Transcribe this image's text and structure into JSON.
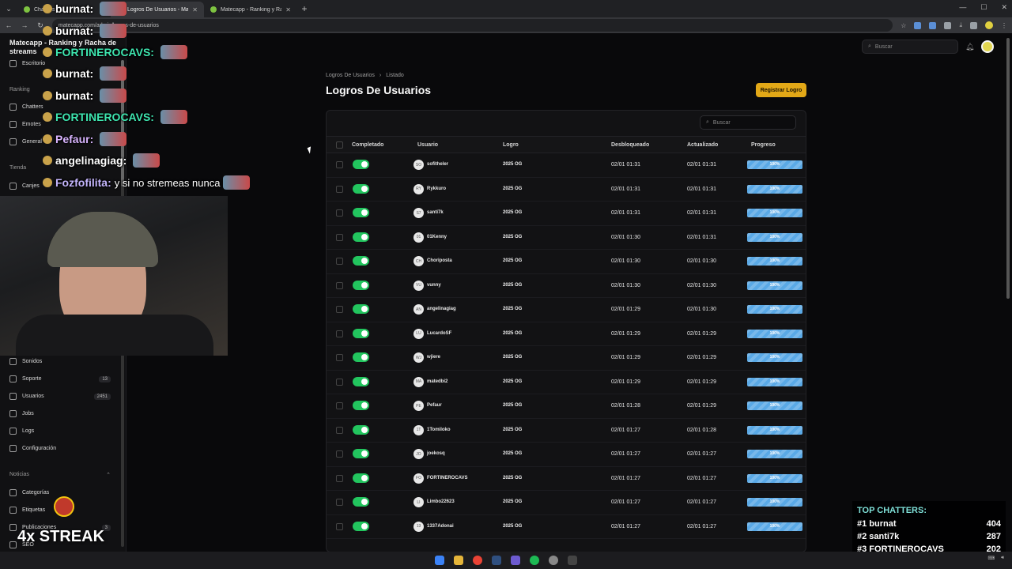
{
  "browser": {
    "tabs": [
      {
        "label": "Chatters",
        "active": false
      },
      {
        "label": "Logros De Usuarios - Matecapp",
        "active": true
      },
      {
        "label": "Matecapp - Ranking y Racha de",
        "active": false
      }
    ],
    "url": "matecapp.com/admin/logros-de-usuarios",
    "new_tab": "+"
  },
  "sidebar": {
    "brand": "Matecapp - Ranking y Racha de streams",
    "items_top": [
      {
        "label": "Escritorio"
      },
      {
        "label": "Chatters"
      },
      {
        "label": "Emotes"
      },
      {
        "label": "General"
      },
      {
        "label": "Canjes"
      }
    ],
    "groups": {
      "ranking": "Ranking",
      "tienda": "Tienda",
      "noticias": "Noticias"
    },
    "items_bottom": [
      {
        "label": "Sonidos",
        "count": ""
      },
      {
        "label": "Soporte",
        "count": "13"
      },
      {
        "label": "Usuarios",
        "count": "2451"
      },
      {
        "label": "Jobs",
        "count": ""
      },
      {
        "label": "Logs",
        "count": ""
      },
      {
        "label": "Configuración",
        "count": ""
      }
    ],
    "items_news": [
      {
        "label": "Categorías",
        "count": ""
      },
      {
        "label": "Etiquetas",
        "count": ""
      },
      {
        "label": "Publicaciones",
        "count": "3"
      },
      {
        "label": "SEO",
        "count": ""
      }
    ]
  },
  "header": {
    "search_placeholder": "Buscar"
  },
  "page": {
    "breadcrumb": [
      "Logros De Usuarios",
      "Listado"
    ],
    "breadcrumb_sep": "›",
    "title": "Logros De Usuarios",
    "primary_button": "Registrar Logro",
    "table_search_placeholder": "Buscar"
  },
  "table": {
    "columns": [
      "Completado",
      "Usuario",
      "Logro",
      "Desbloqueado",
      "Actualizado",
      "Progreso"
    ],
    "rows": [
      {
        "user": "sofitheler",
        "initials": "SO",
        "logro": "2025 OG",
        "unlocked": "02/01 01:31",
        "updated": "02/01 01:31",
        "progress": "100%"
      },
      {
        "user": "Rykkuro",
        "initials": "RY",
        "logro": "2025 OG",
        "unlocked": "02/01 01:31",
        "updated": "02/01 01:31",
        "progress": "100%"
      },
      {
        "user": "santi7k",
        "initials": "S7",
        "logro": "2025 OG",
        "unlocked": "02/01 01:31",
        "updated": "02/01 01:31",
        "progress": "100%"
      },
      {
        "user": "01Kenny",
        "initials": "01",
        "logro": "2025 OG",
        "unlocked": "02/01 01:30",
        "updated": "02/01 01:31",
        "progress": "100%"
      },
      {
        "user": "Choriposta",
        "initials": "CH",
        "logro": "2025 OG",
        "unlocked": "02/01 01:30",
        "updated": "02/01 01:30",
        "progress": "100%"
      },
      {
        "user": "vunny",
        "initials": "VU",
        "logro": "2025 OG",
        "unlocked": "02/01 01:30",
        "updated": "02/01 01:30",
        "progress": "100%"
      },
      {
        "user": "angelinagiag",
        "initials": "AN",
        "logro": "2025 OG",
        "unlocked": "02/01 01:29",
        "updated": "02/01 01:30",
        "progress": "100%"
      },
      {
        "user": "LucardoSF",
        "initials": "LU",
        "logro": "2025 OG",
        "unlocked": "02/01 01:29",
        "updated": "02/01 01:29",
        "progress": "100%"
      },
      {
        "user": "wjiere",
        "initials": "WJ",
        "logro": "2025 OG",
        "unlocked": "02/01 01:29",
        "updated": "02/01 01:29",
        "progress": "100%"
      },
      {
        "user": "matedbi2",
        "initials": "MA",
        "logro": "2025 OG",
        "unlocked": "02/01 01:29",
        "updated": "02/01 01:29",
        "progress": "100%"
      },
      {
        "user": "Pefaur",
        "initials": "PE",
        "logro": "2025 OG",
        "unlocked": "02/01 01:28",
        "updated": "02/01 01:29",
        "progress": "100%"
      },
      {
        "user": "1Tomiloko",
        "initials": "1T",
        "logro": "2025 OG",
        "unlocked": "02/01 01:27",
        "updated": "02/01 01:28",
        "progress": "100%"
      },
      {
        "user": "joekosq",
        "initials": "JO",
        "logro": "2025 OG",
        "unlocked": "02/01 01:27",
        "updated": "02/01 01:27",
        "progress": "100%"
      },
      {
        "user": "FORTINEROCAVS",
        "initials": "FO",
        "logro": "2025 OG",
        "unlocked": "02/01 01:27",
        "updated": "02/01 01:27",
        "progress": "100%"
      },
      {
        "user": "Limbo22623",
        "initials": "LI",
        "logro": "2025 OG",
        "unlocked": "02/01 01:27",
        "updated": "02/01 01:27",
        "progress": "100%"
      },
      {
        "user": "1337Adonai",
        "initials": "13",
        "logro": "2025 OG",
        "unlocked": "02/01 01:27",
        "updated": "02/01 01:27",
        "progress": "100%"
      }
    ]
  },
  "overlay": {
    "chat": [
      {
        "user": "burnat:",
        "msg": "",
        "color": "#ffffff"
      },
      {
        "user": "burnat:",
        "msg": "",
        "color": "#ffffff"
      },
      {
        "user": "FORTINEROCAVS:",
        "msg": "",
        "color": "#3ee6b0"
      },
      {
        "user": "burnat:",
        "msg": "",
        "color": "#ffffff"
      },
      {
        "user": "burnat:",
        "msg": "",
        "color": "#ffffff"
      },
      {
        "user": "FORTINEROCAVS:",
        "msg": "",
        "color": "#3ee6b0"
      },
      {
        "user": "Pefaur:",
        "msg": "",
        "color": "#d8b4fe"
      },
      {
        "user": "angelinagiag:",
        "msg": "",
        "color": "#ffffff"
      },
      {
        "user": "Fozfofilita:",
        "msg": "y si no stremeas nunca",
        "color": "#c4b5fd"
      }
    ],
    "streak": "4x STREAK",
    "top_chatters": {
      "title": "TOP CHATTERS:",
      "rows": [
        {
          "rank": "#1 burnat",
          "value": "404"
        },
        {
          "rank": "#2 santi7k",
          "value": "287"
        },
        {
          "rank": "#3 FORTINEROCAVS",
          "value": "202"
        }
      ]
    }
  },
  "colors": {
    "accent": "#e2a817",
    "toggle_on": "#22c55e",
    "progress": "#5aa9e6"
  }
}
